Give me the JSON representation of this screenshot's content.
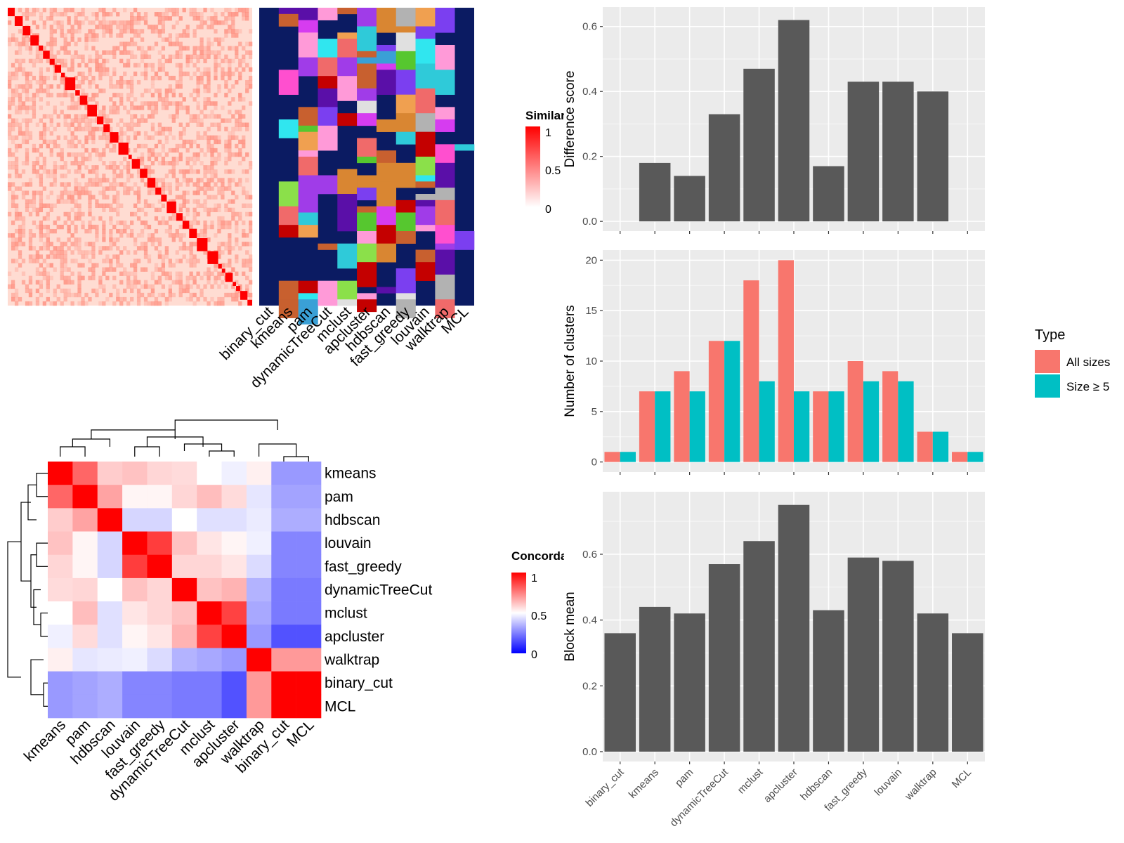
{
  "chart_data": [
    {
      "type": "heatmap",
      "id": "similarity_heatmap",
      "legend": {
        "title": "Similarity",
        "ticks": [
          "1",
          "0.5",
          "0"
        ],
        "colors": [
          "#ffffff",
          "#ff0000"
        ]
      },
      "diagonal_blocks": 36,
      "background_color": "#ffdcd2",
      "diagonal_color": "#ff0000"
    },
    {
      "type": "heatmap",
      "id": "cluster_membership_heatmap",
      "methods": [
        "binary_cut",
        "kmeans",
        "pam",
        "dynamicTreeCut",
        "mclust",
        "apcluster",
        "hdbscan",
        "fast_greedy",
        "louvain",
        "walktrap",
        "MCL"
      ],
      "background_color": "#0b1b62",
      "cluster_palette": [
        "#d63cf0",
        "#c8602f",
        "#f06a6a",
        "#a03ce8",
        "#7b3ff0",
        "#30e6ef",
        "#8be04a",
        "#56c72f",
        "#f0a050",
        "#b2b2b2",
        "#5a0fa8",
        "#e0e0e0",
        "#ff9ad8",
        "#3aa0d6",
        "#c40000",
        "#ff4fcf",
        "#2fcad9",
        "#d98632"
      ]
    },
    {
      "type": "heatmap",
      "id": "concordance_heatmap",
      "rows": [
        "kmeans",
        "pam",
        "hdbscan",
        "louvain",
        "fast_greedy",
        "dynamicTreeCut",
        "mclust",
        "apcluster",
        "walktrap",
        "binary_cut",
        "MCL"
      ],
      "columns": [
        "kmeans",
        "pam",
        "hdbscan",
        "louvain",
        "fast_greedy",
        "dynamicTreeCut",
        "mclust",
        "apcluster",
        "walktrap",
        "binary_cut",
        "MCL"
      ],
      "values": [
        [
          1.0,
          0.8,
          0.6,
          0.62,
          0.58,
          0.57,
          0.5,
          0.47,
          0.53,
          0.3,
          0.3
        ],
        [
          0.8,
          1.0,
          0.68,
          0.52,
          0.52,
          0.58,
          0.63,
          0.57,
          0.45,
          0.32,
          0.32
        ],
        [
          0.6,
          0.68,
          1.0,
          0.42,
          0.42,
          0.5,
          0.44,
          0.44,
          0.46,
          0.34,
          0.34
        ],
        [
          0.62,
          0.52,
          0.42,
          1.0,
          0.88,
          0.62,
          0.55,
          0.52,
          0.47,
          0.26,
          0.26
        ],
        [
          0.58,
          0.52,
          0.42,
          0.88,
          1.0,
          0.58,
          0.58,
          0.55,
          0.43,
          0.26,
          0.26
        ],
        [
          0.57,
          0.58,
          0.5,
          0.62,
          0.58,
          1.0,
          0.62,
          0.65,
          0.35,
          0.24,
          0.24
        ],
        [
          0.5,
          0.63,
          0.44,
          0.55,
          0.58,
          0.62,
          1.0,
          0.87,
          0.33,
          0.24,
          0.24
        ],
        [
          0.47,
          0.57,
          0.44,
          0.52,
          0.55,
          0.65,
          0.87,
          1.0,
          0.3,
          0.16,
          0.16
        ],
        [
          0.53,
          0.45,
          0.46,
          0.47,
          0.43,
          0.35,
          0.33,
          0.3,
          1.0,
          0.7,
          0.7
        ],
        [
          0.3,
          0.32,
          0.34,
          0.26,
          0.26,
          0.24,
          0.24,
          0.16,
          0.7,
          1.0,
          1.0
        ],
        [
          0.3,
          0.32,
          0.34,
          0.26,
          0.26,
          0.24,
          0.24,
          0.16,
          0.7,
          1.0,
          1.0
        ]
      ],
      "legend": {
        "title": "Concordance",
        "ticks": [
          "1",
          "0.5",
          "0"
        ],
        "colors": [
          "#0000ff",
          "#ffffff",
          "#ff0000"
        ]
      }
    },
    {
      "type": "bar",
      "id": "difference_score",
      "categories": [
        "binary_cut",
        "kmeans",
        "pam",
        "dynamicTreeCut",
        "mclust",
        "apcluster",
        "hdbscan",
        "fast_greedy",
        "louvain",
        "walktrap",
        "MCL"
      ],
      "values": [
        null,
        0.18,
        0.14,
        0.33,
        0.47,
        0.62,
        0.17,
        0.43,
        0.43,
        0.4,
        null
      ],
      "ylabel": "Difference score",
      "ylim": [
        -0.03,
        0.66
      ],
      "yticks": [
        "0.0",
        "0.2",
        "0.4",
        "0.6"
      ],
      "bar_color": "#595959"
    },
    {
      "type": "bar",
      "id": "number_of_clusters",
      "categories": [
        "binary_cut",
        "kmeans",
        "pam",
        "dynamicTreeCut",
        "mclust",
        "apcluster",
        "hdbscan",
        "fast_greedy",
        "louvain",
        "walktrap",
        "MCL"
      ],
      "series": [
        {
          "name": "All sizes",
          "color": "#f8766d",
          "values": [
            1,
            7,
            9,
            12,
            18,
            20,
            7,
            10,
            9,
            3,
            1
          ]
        },
        {
          "name": "Size ≥ 5",
          "color": "#00bfc4",
          "values": [
            1,
            7,
            7,
            12,
            8,
            7,
            7,
            8,
            8,
            3,
            1
          ]
        }
      ],
      "ylabel": "Number of clusters",
      "ylim": [
        -1,
        21
      ],
      "yticks": [
        "0",
        "5",
        "10",
        "15",
        "20"
      ],
      "legend": {
        "title": "Type",
        "position": "right"
      }
    },
    {
      "type": "bar",
      "id": "block_mean",
      "categories": [
        "binary_cut",
        "kmeans",
        "pam",
        "dynamicTreeCut",
        "mclust",
        "apcluster",
        "hdbscan",
        "fast_greedy",
        "louvain",
        "walktrap",
        "MCL"
      ],
      "values": [
        0.36,
        0.44,
        0.42,
        0.57,
        0.64,
        0.75,
        0.43,
        0.59,
        0.58,
        0.42,
        0.36
      ],
      "ylabel": "Block mean",
      "ylim": [
        -0.03,
        0.79
      ],
      "yticks": [
        "0.0",
        "0.2",
        "0.4",
        "0.6"
      ],
      "bar_color": "#595959"
    }
  ]
}
